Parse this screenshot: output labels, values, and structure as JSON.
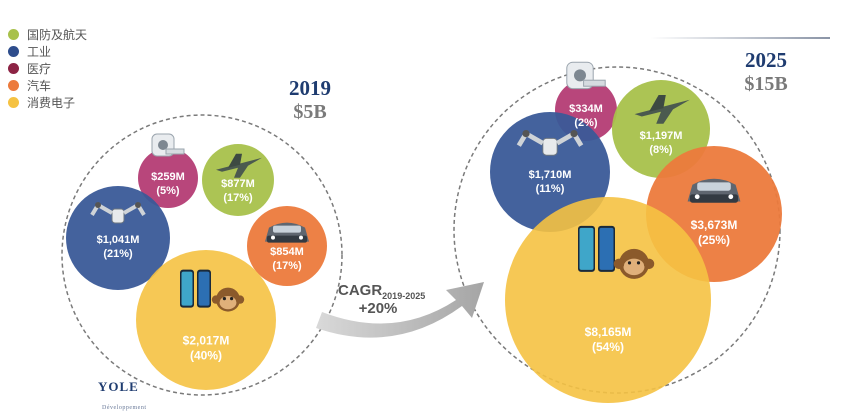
{
  "legend": {
    "items": [
      {
        "label": "国防及航天",
        "color": "#a8c14b"
      },
      {
        "label": "工业",
        "color": "#2e4d8c"
      },
      {
        "label": "医疗",
        "color": "#8c2344"
      },
      {
        "label": "汽车",
        "color": "#ec7a3c"
      },
      {
        "label": "消费电子",
        "color": "#f5c242"
      }
    ]
  },
  "panel_2019": {
    "year": "2019",
    "total": "$5B"
  },
  "panel_2025": {
    "year": "2025",
    "total": "$15B"
  },
  "cagr": {
    "line1": "CAGR",
    "subscript": "2019-2025",
    "line2": "+20%"
  },
  "logo": {
    "name": "YOLE",
    "sub": "Développement"
  },
  "chart_data": [
    {
      "type": "bubble",
      "title": "2019",
      "subtitle": "$5B",
      "unit": "M",
      "segments": [
        {
          "category": "医疗",
          "value": 259,
          "value_label": "$259M",
          "share_label": "(5%)",
          "color": "#b43c74",
          "icon": "medical-scanner-icon"
        },
        {
          "category": "国防及航天",
          "value": 877,
          "value_label": "$877M",
          "share_label": "(17%)",
          "color": "#a8c14b",
          "icon": "fighter-jet-icon"
        },
        {
          "category": "工业",
          "value": 1041,
          "value_label": "$1,041M",
          "share_label": "(21%)",
          "color": "#3a5a98",
          "icon": "robot-arm-icon"
        },
        {
          "category": "汽车",
          "value": 854,
          "value_label": "$854M",
          "share_label": "(17%)",
          "color": "#ec7a3c",
          "icon": "car-icon"
        },
        {
          "category": "消费电子",
          "value": 2017,
          "value_label": "$2,017M",
          "share_label": "(40%)",
          "color": "#f5c242",
          "icon": "smartphone-icon"
        }
      ]
    },
    {
      "type": "bubble",
      "title": "2025",
      "subtitle": "$15B",
      "unit": "M",
      "segments": [
        {
          "category": "医疗",
          "value": 334,
          "value_label": "$334M",
          "share_label": "(2%)",
          "color": "#b43c74",
          "icon": "medical-scanner-icon"
        },
        {
          "category": "国防及航天",
          "value": 1197,
          "value_label": "$1,197M",
          "share_label": "(8%)",
          "color": "#a8c14b",
          "icon": "fighter-jet-icon"
        },
        {
          "category": "工业",
          "value": 1710,
          "value_label": "$1,710M",
          "share_label": "(11%)",
          "color": "#3a5a98",
          "icon": "robot-arm-icon"
        },
        {
          "category": "汽车",
          "value": 3673,
          "value_label": "$3,673M",
          "share_label": "(25%)",
          "color": "#ec7a3c",
          "icon": "car-icon"
        },
        {
          "category": "消费电子",
          "value": 8165,
          "value_label": "$8,165M",
          "share_label": "(54%)",
          "color": "#f5c242",
          "icon": "smartphone-icon"
        }
      ]
    }
  ]
}
